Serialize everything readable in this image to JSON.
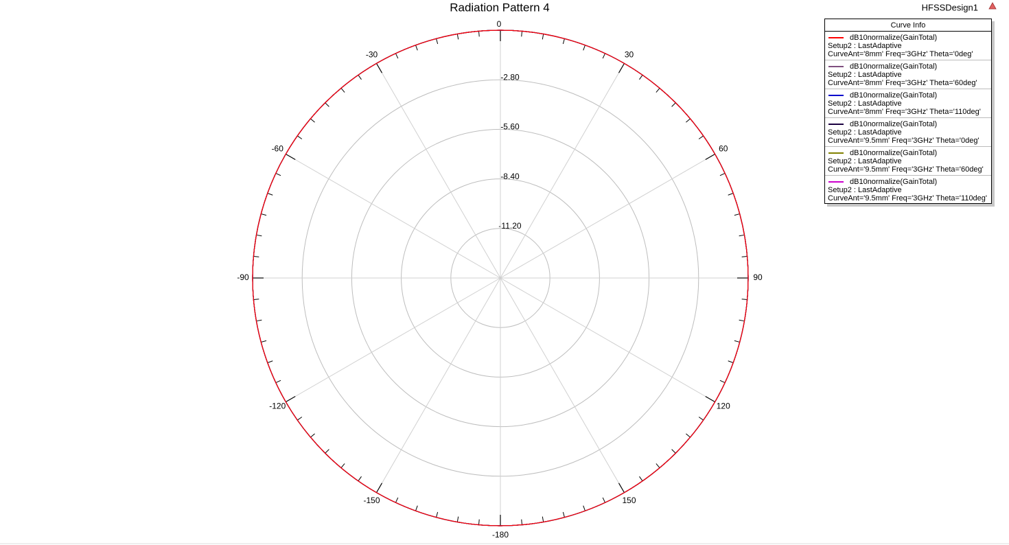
{
  "chart_data": {
    "type": "polar",
    "title": "Radiation Pattern 4",
    "design_name": "HFSSDesign1",
    "legend_title": "Curve Info",
    "legend_position": "upper right",
    "grid": true,
    "x": [
      -180,
      -150,
      -120,
      -90,
      -60,
      -30,
      0,
      30,
      60,
      90,
      120,
      150,
      180
    ],
    "xticks": [
      0,
      30,
      60,
      90,
      120,
      150,
      -180,
      -150,
      -120,
      -90,
      -60,
      -30
    ],
    "rlim": [
      -14,
      0
    ],
    "rticks": [
      {
        "value": -11.2,
        "label": "-11.20"
      },
      {
        "value": -8.4,
        "label": "-8.40"
      },
      {
        "value": -5.6,
        "label": "-5.60"
      },
      {
        "value": -2.8,
        "label": "-2.80"
      },
      0
    ],
    "series": [
      {
        "name": "dB10normalize(GainTotal)",
        "setup": "Setup2 : LastAdaptive",
        "variation": "CurveAnt='8mm' Freq='3GHz' Theta='0deg'",
        "color": "#ff0000",
        "values": [
          0,
          0,
          0,
          0,
          0,
          0,
          0,
          0,
          0,
          0,
          0,
          0,
          0
        ]
      },
      {
        "name": "dB10normalize(GainTotal)",
        "setup": "Setup2 : LastAdaptive",
        "variation": "CurveAnt='8mm' Freq='3GHz' Theta='60deg'",
        "color": "#7f4f7f",
        "values": [
          0,
          0,
          0,
          0,
          0,
          0,
          0,
          0,
          0,
          0,
          0,
          0,
          0
        ]
      },
      {
        "name": "dB10normalize(GainTotal)",
        "setup": "Setup2 : LastAdaptive",
        "variation": "CurveAnt='8mm' Freq='3GHz' Theta='110deg'",
        "color": "#0000cc",
        "values": [
          0,
          0,
          0,
          0,
          0,
          0,
          0,
          0,
          0,
          0,
          0,
          0,
          0
        ]
      },
      {
        "name": "dB10normalize(GainTotal)",
        "setup": "Setup2 : LastAdaptive",
        "variation": "CurveAnt='9.5mm' Freq='3GHz' Theta='0deg'",
        "color": "#1a0040",
        "values": [
          0,
          0,
          0,
          0,
          0,
          0,
          0,
          0,
          0,
          0,
          0,
          0,
          0
        ]
      },
      {
        "name": "dB10normalize(GainTotal)",
        "setup": "Setup2 : LastAdaptive",
        "variation": "CurveAnt='9.5mm' Freq='3GHz' Theta='60deg'",
        "color": "#808000",
        "values": [
          0,
          0,
          0,
          0,
          0,
          0,
          0,
          0,
          0,
          0,
          0,
          0,
          0
        ]
      },
      {
        "name": "dB10normalize(GainTotal)",
        "setup": "Setup2 : LastAdaptive",
        "variation": "CurveAnt='9.5mm' Freq='3GHz' Theta='110deg'",
        "color": "#cc00cc",
        "values": [
          0,
          0,
          0,
          0,
          0,
          0,
          0,
          0,
          0,
          0,
          0,
          0,
          0
        ]
      }
    ]
  }
}
